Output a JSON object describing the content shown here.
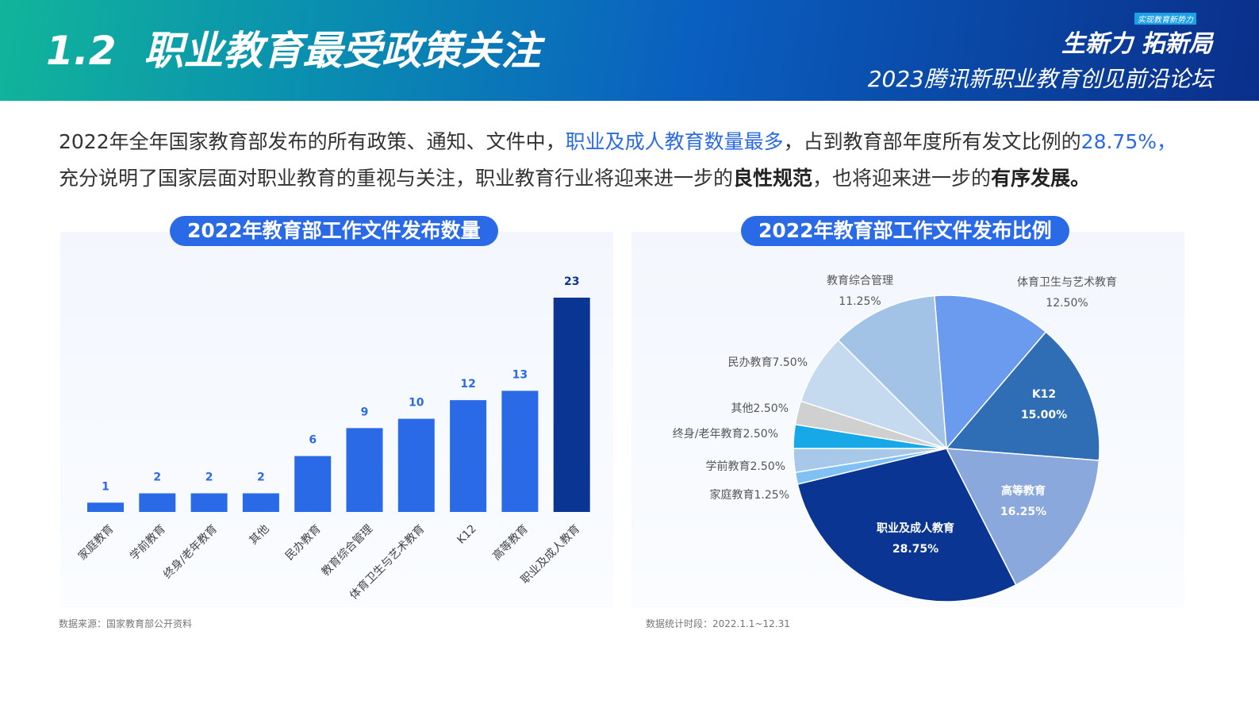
{
  "header": {
    "title": "1.2  职业教育最受政策关注",
    "badge": "实现教育新势力",
    "slogan": "生新力 拓新局",
    "subtitle": "2023腾讯新职业教育创见前沿论坛"
  },
  "intro": {
    "segments": [
      "2022年全年国家教育部发布的所有政策、通知、文件中，",
      "职业及成人教育数量最多",
      "，占到教育部年度所有发文比例的",
      "28.75%，",
      "充分说明了国家层面对职业教育的重视与关注，职业教育行业将迎来进一步的",
      "良性规范",
      "，也将迎来进一步的",
      "有序发展",
      "。"
    ]
  },
  "chart_data": [
    {
      "type": "bar",
      "title": "2022年教育部工作文件发布数量",
      "source": "数据来源：国家教育部公开资料",
      "categories": [
        "家庭教育",
        "学前教育",
        "终身/老年教育",
        "其他",
        "民办教育",
        "教育综合管理",
        "体育卫生与艺术教育",
        "K12",
        "高等教育",
        "职业及成人教育"
      ],
      "values": [
        1,
        2,
        2,
        2,
        6,
        9,
        10,
        12,
        13,
        23
      ],
      "colors": [
        "#2b6ae6",
        "#2b6ae6",
        "#2b6ae6",
        "#2b6ae6",
        "#2b6ae6",
        "#2b6ae6",
        "#2b6ae6",
        "#2b6ae6",
        "#2b6ae6",
        "#0a3592"
      ]
    },
    {
      "type": "pie",
      "title": "2022年教育部工作文件发布比例",
      "source": "数据统计时段：2022.1.1~12.31",
      "categories": [
        "体育卫生与艺术教育",
        "K12",
        "高等教育",
        "职业及成人教育",
        "家庭教育",
        "学前教育",
        "终身/老年教育",
        "其他",
        "民办教育",
        "教育综合管理"
      ],
      "values": [
        12.5,
        15,
        16.25,
        28.75,
        1.25,
        2.5,
        2.5,
        2.5,
        7.5,
        11.25
      ],
      "value_labels": [
        "12.50%",
        "15.00%",
        "16.25%",
        "28.75%",
        "1.25%",
        "2.50%",
        "2.50%",
        "2.50%",
        "7.50%",
        "11.25%"
      ],
      "colors": [
        "#6b9bef",
        "#2f6db5",
        "#8aa8dc",
        "#0a3592",
        "#7fc0f5",
        "#a8c8ea",
        "#17a8e8",
        "#d0d0d0",
        "#c5d9ef",
        "#a3c3e6"
      ]
    }
  ]
}
